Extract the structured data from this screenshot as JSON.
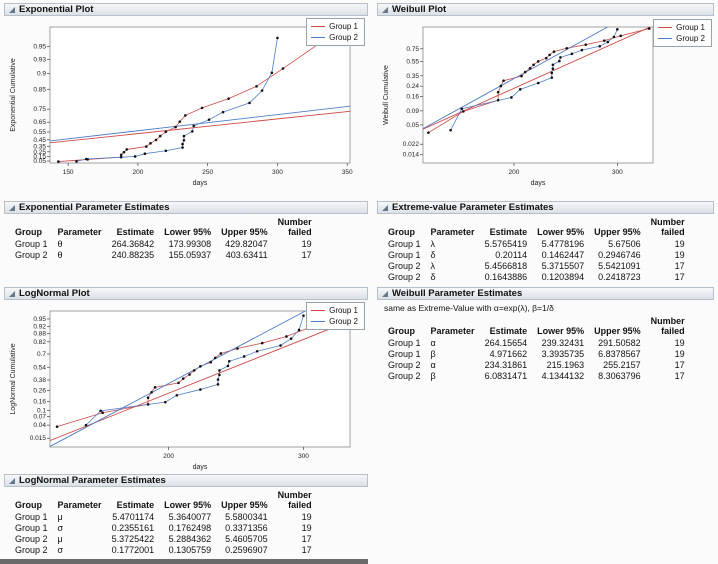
{
  "colors": {
    "group1": "#cf4a48",
    "group2": "#4f7ec9",
    "point": "#111111"
  },
  "legend": {
    "group1": "Group 1",
    "group2": "Group 2"
  },
  "panels": {
    "exponential_plot": {
      "title": "Exponential Plot"
    },
    "exponential_estimates": {
      "title": "Exponential Parameter Estimates"
    },
    "lognormal_plot": {
      "title": "LogNormal Plot"
    },
    "lognormal_estimates": {
      "title": "LogNormal Parameter Estimates"
    },
    "weibull_plot": {
      "title": "Weibull Plot"
    },
    "extreme_value_estimates": {
      "title": "Extreme-value Parameter Estimates"
    },
    "weibull_estimates": {
      "title": "Weibull Parameter Estimates",
      "note": "same as Extreme-Value with α=exp(λ), β=1/δ"
    }
  },
  "tables": {
    "exponential": {
      "columns": [
        {
          "label": "Group",
          "align": "l"
        },
        {
          "label": "Parameter",
          "align": "l"
        },
        {
          "label": "Estimate",
          "align": "r"
        },
        {
          "label": "Lower 95%",
          "align": "r"
        },
        {
          "label": "Upper 95%",
          "align": "r"
        },
        {
          "label": "Number\nfailed",
          "align": "r"
        }
      ],
      "rows": [
        [
          "Group 1",
          "θ",
          "264.36842",
          "173.99308",
          "429.82047",
          "19"
        ],
        [
          "Group 2",
          "θ",
          "240.88235",
          "155.05937",
          "403.63411",
          "17"
        ]
      ]
    },
    "lognormal": {
      "columns": [
        {
          "label": "Group",
          "align": "l"
        },
        {
          "label": "Parameter",
          "align": "l"
        },
        {
          "label": "Estimate",
          "align": "r"
        },
        {
          "label": "Lower 95%",
          "align": "r"
        },
        {
          "label": "Upper 95%",
          "align": "r"
        },
        {
          "label": "Number\nfailed",
          "align": "r"
        }
      ],
      "rows": [
        [
          "Group 1",
          "μ",
          "5.4701174",
          "5.3640077",
          "5.5800341",
          "19"
        ],
        [
          "Group 1",
          "σ",
          "0.2355161",
          "0.1762498",
          "0.3371356",
          "19"
        ],
        [
          "Group 2",
          "μ",
          "5.3725422",
          "5.2884362",
          "5.4605705",
          "17"
        ],
        [
          "Group 2",
          "σ",
          "0.1772001",
          "0.1305759",
          "0.2596907",
          "17"
        ]
      ]
    },
    "extreme_value": {
      "columns": [
        {
          "label": "Group",
          "align": "l"
        },
        {
          "label": "Parameter",
          "align": "l"
        },
        {
          "label": "Estimate",
          "align": "r"
        },
        {
          "label": "Lower 95%",
          "align": "r"
        },
        {
          "label": "Upper 95%",
          "align": "r"
        },
        {
          "label": "Number\nfailed",
          "align": "r"
        }
      ],
      "rows": [
        [
          "Group 1",
          "λ",
          "5.5765419",
          "5.4778196",
          "5.67506",
          "19"
        ],
        [
          "Group 1",
          "δ",
          "0.20114",
          "0.1462447",
          "0.2946746",
          "19"
        ],
        [
          "Group 2",
          "λ",
          "5.4566818",
          "5.3715507",
          "5.5421091",
          "17"
        ],
        [
          "Group 2",
          "δ",
          "0.1643886",
          "0.1203894",
          "0.2418723",
          "17"
        ]
      ]
    },
    "weibull": {
      "columns": [
        {
          "label": "Group",
          "align": "l"
        },
        {
          "label": "Parameter",
          "align": "l"
        },
        {
          "label": "Estimate",
          "align": "r"
        },
        {
          "label": "Lower 95%",
          "align": "r"
        },
        {
          "label": "Upper 95%",
          "align": "r"
        },
        {
          "label": "Number\nfailed",
          "align": "r"
        }
      ],
      "rows": [
        [
          "Group 1",
          "α",
          "264.15654",
          "239.32431",
          "291.50582",
          "19"
        ],
        [
          "Group 1",
          "β",
          "4.971662",
          "3.3935735",
          "6.8378567",
          "19"
        ],
        [
          "Group 2",
          "α",
          "234.31861",
          "215.1963",
          "255.2157",
          "17"
        ],
        [
          "Group 2",
          "β",
          "6.0831471",
          "4.1344132",
          "8.3063796",
          "17"
        ]
      ]
    }
  },
  "chart_data": {
    "type": "probability-plots",
    "points": {
      "group1": {
        "times": [
          143,
          164,
          188,
          188,
          190,
          192,
          206,
          209,
          213,
          216,
          220,
          227,
          230,
          234,
          246,
          265,
          285,
          304,
          340
        ],
        "cumulative_prob": [
          0.036,
          0.088,
          0.139,
          0.191,
          0.242,
          0.294,
          0.345,
          0.397,
          0.448,
          0.5,
          0.552,
          0.603,
          0.655,
          0.706,
          0.758,
          0.809,
          0.861,
          0.912,
          0.964
        ]
      },
      "group2": {
        "times": [
          156,
          163,
          198,
          205,
          220,
          232,
          232,
          233,
          233,
          239,
          240,
          251,
          261,
          280,
          289,
          296,
          300
        ],
        "cumulative_prob": [
          0.04,
          0.098,
          0.155,
          0.213,
          0.27,
          0.328,
          0.385,
          0.443,
          0.5,
          0.557,
          0.615,
          0.672,
          0.73,
          0.787,
          0.845,
          0.902,
          0.96
        ]
      }
    },
    "charts": [
      {
        "key": "exponential",
        "title": "Exponential Plot",
        "xlabel": "days",
        "ylabel": "Exponential Cumulative",
        "xscale": "linear",
        "yscale": "exp-probability",
        "xlim": [
          137,
          352
        ],
        "xticks": [
          150,
          200,
          250,
          300,
          350
        ],
        "yticks": [
          0.05,
          0.15,
          0.25,
          0.35,
          0.45,
          0.55,
          0.65,
          0.75,
          0.85,
          0.9,
          0.93,
          0.95
        ],
        "ulim": [
          0,
          3.5
        ],
        "series": [
          {
            "name": "Group 1",
            "group": "group1",
            "fit": {
              "dist": "exponential",
              "theta": 264.36842
            }
          },
          {
            "name": "Group 2",
            "group": "group2",
            "fit": {
              "dist": "exponential",
              "theta": 240.88235
            }
          }
        ]
      },
      {
        "key": "weibull",
        "title": "Weibull Plot",
        "xlabel": "days",
        "ylabel": "Weibull Cumulative",
        "xscale": "log",
        "yscale": "weibull",
        "xlim": [
          140,
          345
        ],
        "xticks": [
          200,
          300
        ],
        "yticks": [
          0.014,
          0.022,
          0.05,
          0.09,
          0.16,
          0.24,
          0.35,
          0.55,
          0.75
        ],
        "ulim": [
          -4.62,
          1.27
        ],
        "series": [
          {
            "name": "Group 1",
            "group": "group1",
            "fit": {
              "dist": "weibull",
              "alpha": 264.15654,
              "beta": 4.971662
            }
          },
          {
            "name": "Group 2",
            "group": "group2",
            "fit": {
              "dist": "weibull",
              "alpha": 234.31861,
              "beta": 6.0831471
            }
          }
        ]
      },
      {
        "key": "lognormal",
        "title": "LogNormal Plot",
        "xlabel": "days",
        "ylabel": "LogNormal Cumulative",
        "xscale": "log",
        "yscale": "probit",
        "xlim": [
          140,
          345
        ],
        "xticks": [
          200,
          300
        ],
        "yticks": [
          0.015,
          0.04,
          0.07,
          0.1,
          0.16,
          0.26,
          0.38,
          0.54,
          0.7,
          0.82,
          0.88,
          0.92,
          0.95
        ],
        "ulim": [
          -2.45,
          1.9
        ],
        "series": [
          {
            "name": "Group 1",
            "group": "group1",
            "fit": {
              "dist": "lognormal",
              "mu": 5.4701174,
              "sigma": 0.2355161
            }
          },
          {
            "name": "Group 2",
            "group": "group2",
            "fit": {
              "dist": "lognormal",
              "mu": 5.3725422,
              "sigma": 0.1772001
            }
          }
        ]
      }
    ]
  }
}
